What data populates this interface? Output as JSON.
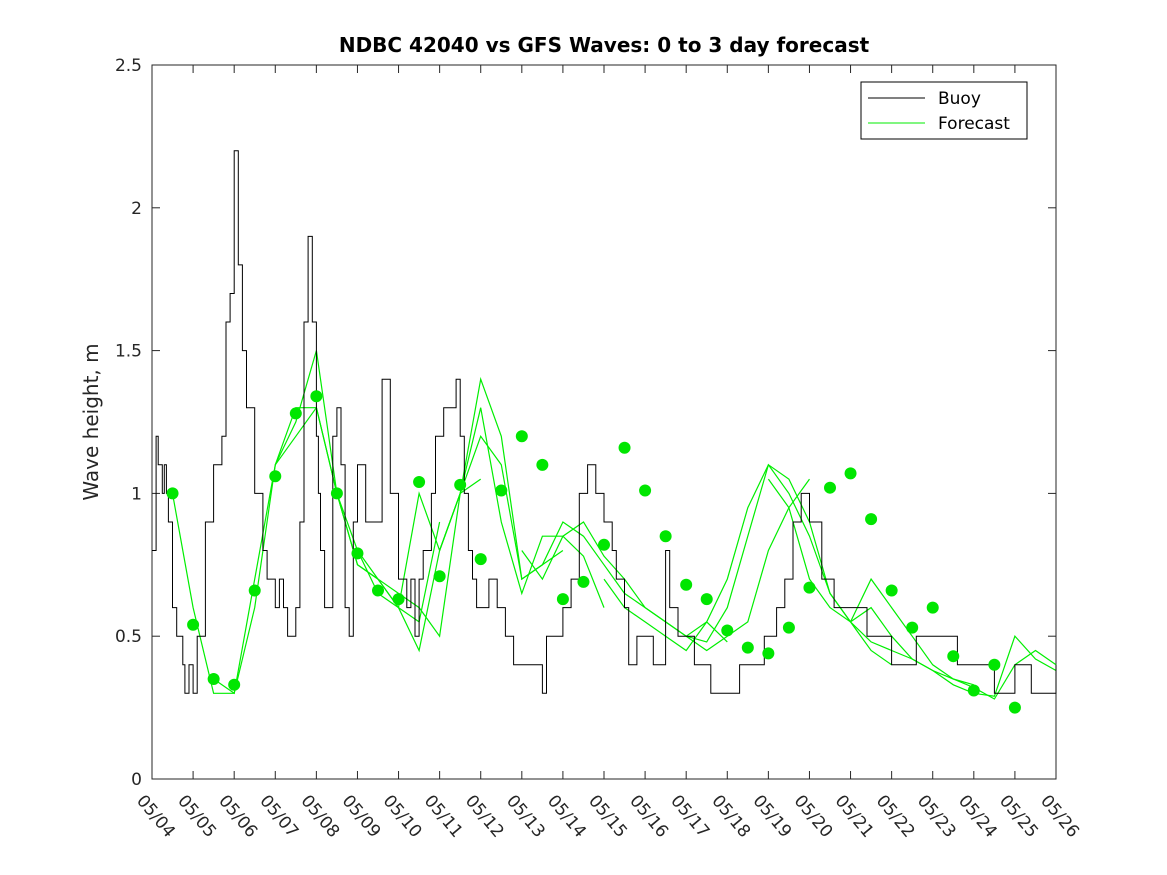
{
  "chart_data": {
    "type": "line",
    "title": "NDBC 42040 vs GFS Waves: 0 to 3 day forecast",
    "xlabel": "",
    "ylabel": "Wave height, m",
    "ylim": [
      0,
      2.5
    ],
    "yticks": [
      "0",
      "0.5",
      "1",
      "1.5",
      "2",
      "2.5"
    ],
    "x_dates": [
      "05/04",
      "05/05",
      "05/06",
      "05/07",
      "05/08",
      "05/09",
      "05/10",
      "05/11",
      "05/12",
      "05/13",
      "05/14",
      "05/15",
      "05/16",
      "05/17",
      "05/18",
      "05/19",
      "05/20",
      "05/21",
      "05/22",
      "05/23",
      "05/24",
      "05/25",
      "05/26"
    ],
    "x_range_days": [
      0,
      22
    ],
    "grid": false,
    "legend": {
      "position": "top-right",
      "entries": [
        "Buoy",
        "Forecast"
      ]
    },
    "colors": {
      "buoy": "#000000",
      "forecast": "#00ee00",
      "analysis_dots": "#00e600"
    },
    "series": [
      {
        "name": "Buoy",
        "x": [
          0,
          0.1,
          0.15,
          0.2,
          0.25,
          0.3,
          0.35,
          0.4,
          0.5,
          0.6,
          0.75,
          0.8,
          0.9,
          1.0,
          1.1,
          1.2,
          1.3,
          1.5,
          1.6,
          1.7,
          1.8,
          1.9,
          2.0,
          2.1,
          2.2,
          2.3,
          2.5,
          2.7,
          2.8,
          2.9,
          3.0,
          3.1,
          3.2,
          3.3,
          3.4,
          3.5,
          3.6,
          3.7,
          3.8,
          3.9,
          4.0,
          4.05,
          4.1,
          4.2,
          4.3,
          4.4,
          4.5,
          4.6,
          4.7,
          4.8,
          4.9,
          5.0,
          5.2,
          5.4,
          5.6,
          5.8,
          6.0,
          6.2,
          6.3,
          6.4,
          6.5,
          6.6,
          6.7,
          6.8,
          6.9,
          7.0,
          7.1,
          7.2,
          7.3,
          7.4,
          7.5,
          7.6,
          7.7,
          7.8,
          7.9,
          8.0,
          8.2,
          8.4,
          8.6,
          8.8,
          9.0,
          9.2,
          9.4,
          9.5,
          9.6,
          9.8,
          10.0,
          10.2,
          10.4,
          10.6,
          10.8,
          11.0,
          11.2,
          11.3,
          11.5,
          11.6,
          11.8,
          12.0,
          12.2,
          12.4,
          12.5,
          12.6,
          12.8,
          13.0,
          13.2,
          13.4,
          13.6,
          13.8,
          14.0,
          14.3,
          14.6,
          14.9,
          15.2,
          15.4,
          15.6,
          15.8,
          16.0,
          16.3,
          16.6,
          17.0,
          17.4,
          17.8,
          18.0,
          18.1,
          18.3,
          18.6,
          19.0,
          19.3,
          19.6,
          19.8,
          20.0,
          20.2,
          20.5,
          20.8,
          21.0,
          21.4,
          21.8,
          22.0
        ],
        "values": [
          0.8,
          1.2,
          1.1,
          1.1,
          1.0,
          1.1,
          1.0,
          0.9,
          0.6,
          0.5,
          0.4,
          0.3,
          0.4,
          0.3,
          0.5,
          0.5,
          0.9,
          1.1,
          1.1,
          1.2,
          1.6,
          1.7,
          2.2,
          1.8,
          1.5,
          1.3,
          1.0,
          0.8,
          0.7,
          0.7,
          0.6,
          0.7,
          0.6,
          0.5,
          0.5,
          0.6,
          0.9,
          1.6,
          1.9,
          1.6,
          1.2,
          1.0,
          0.8,
          0.6,
          0.6,
          1.2,
          1.3,
          1.1,
          0.6,
          0.5,
          0.9,
          1.1,
          0.9,
          0.9,
          1.4,
          1.0,
          0.7,
          0.6,
          0.7,
          0.5,
          0.7,
          0.8,
          0.8,
          1.0,
          1.2,
          1.2,
          1.3,
          1.3,
          1.3,
          1.4,
          1.2,
          1.0,
          0.8,
          0.7,
          0.6,
          0.6,
          0.7,
          0.6,
          0.5,
          0.4,
          0.4,
          0.4,
          0.4,
          0.3,
          0.5,
          0.5,
          0.6,
          0.7,
          1.0,
          1.1,
          1.0,
          0.9,
          0.8,
          0.7,
          0.6,
          0.4,
          0.5,
          0.5,
          0.4,
          0.4,
          0.8,
          0.6,
          0.5,
          0.5,
          0.4,
          0.4,
          0.3,
          0.3,
          0.3,
          0.4,
          0.4,
          0.5,
          0.6,
          0.7,
          0.9,
          1.0,
          0.9,
          0.7,
          0.6,
          0.6,
          0.5,
          0.5,
          0.4,
          0.4,
          0.4,
          0.5,
          0.5,
          0.5,
          0.4,
          0.4,
          0.4,
          0.4,
          0.3,
          0.3,
          0.4,
          0.3,
          0.3,
          0.4
        ]
      }
    ],
    "forecast_runs": [
      {
        "x": [
          0.5,
          1.0,
          1.5,
          2.0,
          2.5,
          3.0,
          3.5,
          4.0,
          4.5,
          5.0,
          5.5,
          6.0,
          6.5,
          7.0
        ],
        "values": [
          1.0,
          0.6,
          0.3,
          0.3,
          0.7,
          1.1,
          1.3,
          1.3,
          1.0,
          0.8,
          0.65,
          0.6,
          0.55,
          0.9
        ]
      },
      {
        "x": [
          1.5,
          2.0,
          2.5,
          3.0,
          3.5,
          4.0,
          4.5,
          5.0,
          5.5,
          6.0,
          6.5,
          7.0,
          7.5,
          8.0
        ],
        "values": [
          0.35,
          0.3,
          0.6,
          1.1,
          1.25,
          1.5,
          1.0,
          0.75,
          0.7,
          0.65,
          0.6,
          0.5,
          1.0,
          1.05
        ]
      },
      {
        "x": [
          3.0,
          3.5,
          4.0,
          4.5,
          5.0,
          5.5,
          6.0,
          6.5,
          7.0,
          7.5,
          8.0,
          8.5,
          9.0,
          9.5,
          10.0
        ],
        "values": [
          1.1,
          1.2,
          1.3,
          1.0,
          0.75,
          0.7,
          0.6,
          0.45,
          0.8,
          1.0,
          1.4,
          1.2,
          0.7,
          0.75,
          0.8
        ]
      },
      {
        "x": [
          5.0,
          5.5,
          6.0,
          6.5,
          7.0,
          7.5,
          8.0,
          8.5,
          9.0,
          9.5,
          10.0,
          10.5,
          11.0
        ],
        "values": [
          0.8,
          0.7,
          0.6,
          1.0,
          0.8,
          1.0,
          1.3,
          0.9,
          0.65,
          0.85,
          0.85,
          0.78,
          0.6
        ]
      },
      {
        "x": [
          7.0,
          7.5,
          8.0,
          8.5,
          9.0,
          9.5,
          10.0,
          10.5,
          11.0,
          11.5,
          12.0,
          12.5,
          13.0,
          13.5,
          14.0
        ],
        "values": [
          0.8,
          1.0,
          1.2,
          1.1,
          0.7,
          0.75,
          0.9,
          0.85,
          0.75,
          0.65,
          0.6,
          0.55,
          0.5,
          0.55,
          0.48
        ]
      },
      {
        "x": [
          9.0,
          9.5,
          10.0,
          10.5,
          11.0,
          11.5,
          12.0,
          12.5,
          13.0,
          13.5,
          14.0,
          14.5,
          15.0,
          15.5,
          16.0
        ],
        "values": [
          0.8,
          0.7,
          0.85,
          0.9,
          0.78,
          0.7,
          0.6,
          0.55,
          0.5,
          0.45,
          0.5,
          0.55,
          0.8,
          0.95,
          1.05
        ]
      },
      {
        "x": [
          11.0,
          11.5,
          12.0,
          12.5,
          13.0,
          13.5,
          14.0,
          14.5,
          15.0,
          15.5,
          16.0,
          16.5,
          17.0,
          17.5,
          18.0
        ],
        "values": [
          0.7,
          0.6,
          0.55,
          0.5,
          0.45,
          0.55,
          0.7,
          0.95,
          1.1,
          1.0,
          0.85,
          0.65,
          0.55,
          0.45,
          0.4
        ]
      },
      {
        "x": [
          13.0,
          13.5,
          14.0,
          14.5,
          15.0,
          15.5,
          16.0,
          16.5,
          17.0,
          17.5,
          18.0,
          18.5,
          19.0,
          19.5,
          20.0
        ],
        "values": [
          0.5,
          0.48,
          0.6,
          0.85,
          1.1,
          1.05,
          0.9,
          0.65,
          0.55,
          0.48,
          0.45,
          0.42,
          0.38,
          0.35,
          0.33
        ]
      },
      {
        "x": [
          15.0,
          15.5,
          16.0,
          16.5,
          17.0,
          17.5,
          18.0,
          18.5,
          19.0,
          19.5,
          20.0,
          20.5,
          21.0,
          21.5,
          22.0
        ],
        "values": [
          1.05,
          0.95,
          0.7,
          0.6,
          0.55,
          0.7,
          0.6,
          0.5,
          0.4,
          0.35,
          0.32,
          0.28,
          0.4,
          0.45,
          0.4
        ]
      },
      {
        "x": [
          17.0,
          17.5,
          18.0,
          18.5,
          19.0,
          19.5,
          20.0,
          20.5,
          21.0,
          21.5,
          22.0
        ],
        "values": [
          0.55,
          0.6,
          0.5,
          0.42,
          0.38,
          0.33,
          0.3,
          0.29,
          0.5,
          0.42,
          0.38
        ]
      }
    ],
    "analysis_points": {
      "x": [
        0.5,
        1.0,
        1.5,
        2.0,
        2.5,
        3.0,
        3.5,
        4.0,
        4.5,
        5.0,
        5.5,
        6.0,
        6.5,
        7.0,
        7.5,
        8.0,
        8.5,
        9.0,
        9.5,
        10.0,
        10.5,
        11.0,
        11.5,
        12.0,
        12.5,
        13.0,
        13.5,
        14.0,
        14.5,
        15.0,
        15.5,
        16.0,
        16.5,
        17.0,
        17.5,
        18.0,
        18.5,
        19.0,
        19.5,
        20.0,
        20.5,
        21.0
      ],
      "values": [
        1.0,
        0.54,
        0.35,
        0.33,
        0.66,
        1.06,
        1.28,
        1.34,
        1.0,
        0.79,
        0.66,
        0.63,
        1.04,
        0.71,
        1.03,
        0.77,
        1.01,
        1.2,
        1.1,
        0.63,
        0.69,
        0.82,
        1.16,
        1.01,
        0.85,
        0.68,
        0.63,
        0.52,
        0.46,
        0.44,
        0.53,
        0.67,
        1.02,
        1.07,
        0.91,
        0.66,
        0.53,
        0.6,
        0.43,
        0.31,
        0.4,
        0.25
      ]
    }
  }
}
